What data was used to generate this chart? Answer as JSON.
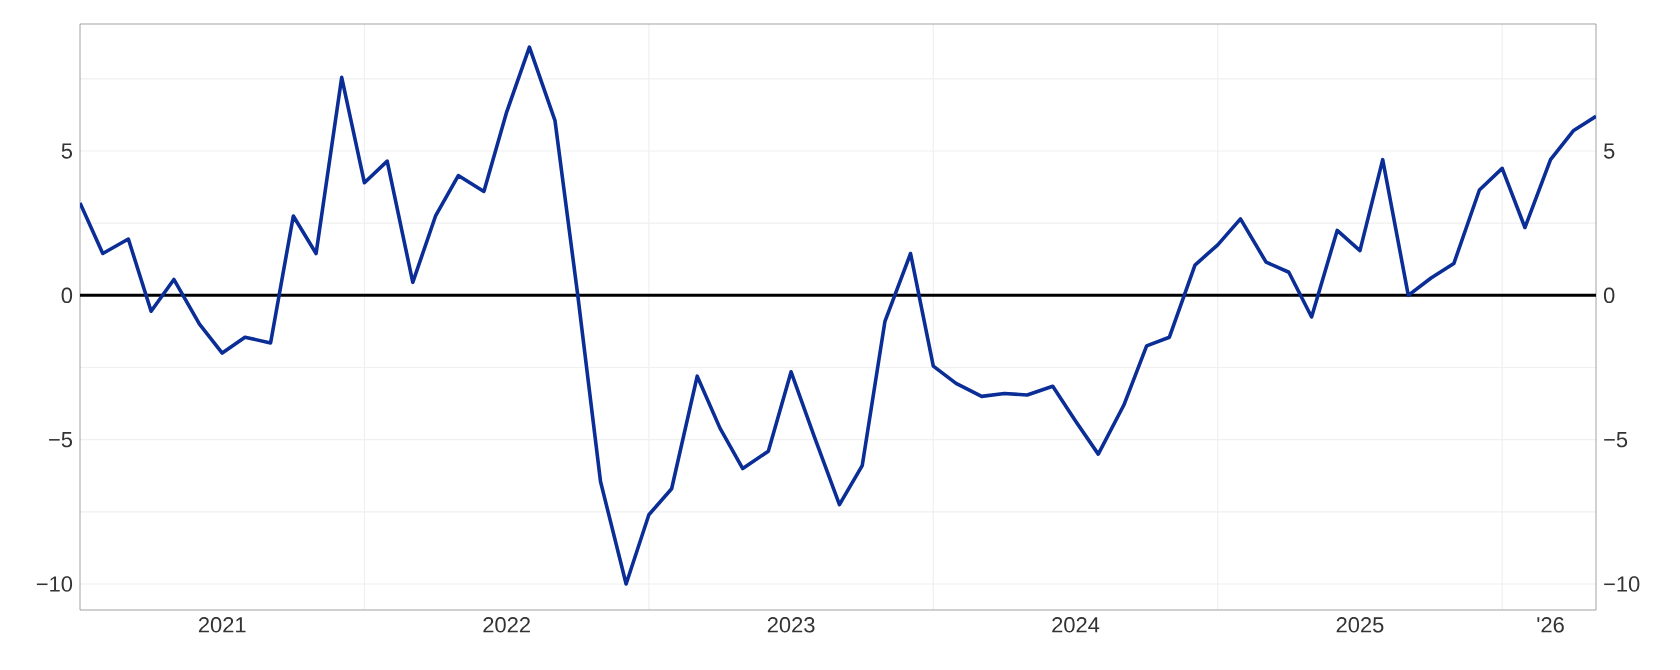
{
  "chart_data": {
    "type": "line",
    "x": [
      "2021-01",
      "2021-02",
      "2021-03",
      "2021-04",
      "2021-05",
      "2021-06",
      "2021-07",
      "2021-08",
      "2021-09",
      "2021-10",
      "2021-11",
      "2021-12",
      "2022-01",
      "2022-02",
      "2022-03",
      "2022-04",
      "2022-05",
      "2022-06",
      "2022-07",
      "2022-08",
      "2022-09",
      "2022-10",
      "2022-11",
      "2022-12",
      "2023-01",
      "2023-02",
      "2023-03",
      "2023-04",
      "2023-05",
      "2023-06",
      "2023-07",
      "2023-08",
      "2023-09",
      "2023-10",
      "2023-11",
      "2023-12",
      "2024-01",
      "2024-02",
      "2024-03",
      "2024-04",
      "2024-05",
      "2024-06",
      "2024-07",
      "2024-08",
      "2024-09",
      "2024-10",
      "2024-11",
      "2024-12",
      "2025-01",
      "2025-02",
      "2025-03",
      "2025-04",
      "2025-05",
      "2025-06",
      "2025-07",
      "2025-08",
      "2025-09",
      "2025-10",
      "2025-11",
      "2025-12",
      "2026-01",
      "2026-02",
      "2026-03",
      "2026-04",
      "2026-05"
    ],
    "series": [
      {
        "color": "#0b2d96",
        "values": [
          3.2,
          1.45,
          1.95,
          -0.55,
          0.55,
          -1.0,
          -2.0,
          -1.45,
          -1.65,
          2.75,
          1.45,
          7.55,
          3.9,
          4.65,
          0.45,
          2.75,
          4.15,
          3.6,
          6.35,
          8.6,
          6.05,
          0,
          -6.45,
          -10.0,
          -7.6,
          -6.7,
          -2.8,
          -4.6,
          -6.0,
          -5.4,
          -2.65,
          -4.85,
          -7.25,
          -5.9,
          -0.9,
          1.45,
          -2.45,
          -3.05,
          -3.5,
          -3.4,
          -3.45,
          -3.15,
          -4.35,
          -5.5,
          -3.8,
          -1.75,
          -1.45,
          1.05,
          1.75,
          2.65,
          1.15,
          0.8,
          -0.75,
          2.25,
          1.55,
          4.7,
          0,
          0.6,
          1.1,
          3.65,
          4.4,
          2.35,
          4.7,
          5.7,
          6.2
        ]
      }
    ],
    "xlim": [
      "2021-01",
      "2026-05"
    ],
    "xticks": [
      {
        "value": "2021-07",
        "label": "2021"
      },
      {
        "value": "2022-07",
        "label": "2022"
      },
      {
        "value": "2023-07",
        "label": "2023"
      },
      {
        "value": "2024-07",
        "label": "2024"
      },
      {
        "value": "2025-07",
        "label": "2025"
      },
      {
        "value": "2026-03",
        "label": "'26"
      },
      {
        "value": "2022-01",
        "label": null
      },
      {
        "value": "2023-01",
        "label": null
      },
      {
        "value": "2024-01",
        "label": null
      },
      {
        "value": "2025-01",
        "label": null
      },
      {
        "value": "2026-01",
        "label": null
      }
    ],
    "ylim": [
      -10.9,
      9.4
    ],
    "yticks": [
      {
        "value": -10,
        "label": "−10"
      },
      {
        "value": -5,
        "label": "−5"
      },
      0,
      5,
      {
        "value": -7.5,
        "label": null
      },
      {
        "value": -2.5,
        "label": null
      },
      {
        "value": 2.5,
        "label": null
      },
      {
        "value": 7.5,
        "label": null
      }
    ],
    "y2lim": [
      -10.9,
      9.4
    ],
    "y2ticks": [
      {
        "value": -10,
        "label": "−10"
      },
      {
        "value": -5,
        "label": "−5"
      },
      0,
      5
    ],
    "ref_lines": [
      {
        "axis": "y",
        "value": 0,
        "color": "#000000"
      }
    ],
    "grid": true,
    "marker": "none",
    "line_style": "solid"
  }
}
